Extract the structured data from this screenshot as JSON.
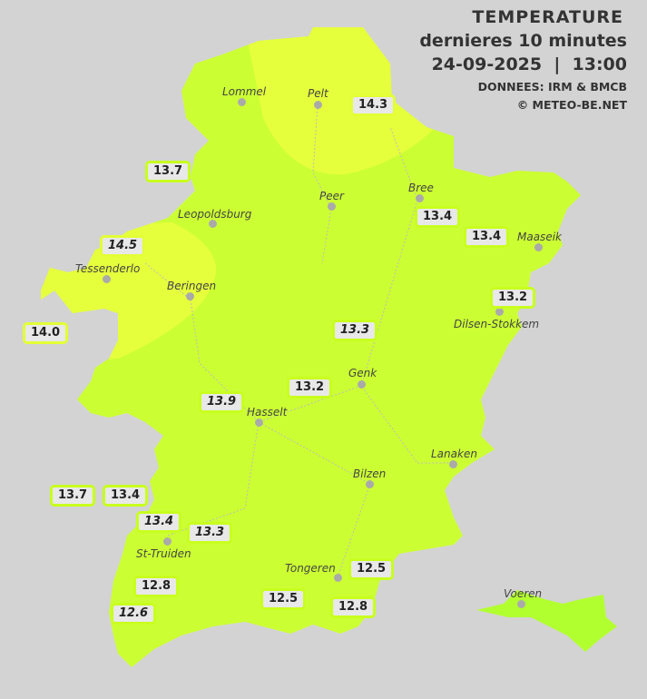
{
  "header": {
    "title": "TEMPERATURE",
    "subtitle": "dernieres 10 minutes",
    "datetime": "24-09-2025  |  13:00",
    "source": "DONNEES: IRM & BMCB",
    "copyright": "© METEO-BE.NET"
  },
  "colors": {
    "background": "#d3d3d3",
    "temp_13": "#ccff33",
    "temp_14": "#e6ff3c",
    "temp_12": "#b2ff30",
    "label_border": "#c8ff1e"
  },
  "cities": [
    {
      "name": "Lommel"
    },
    {
      "name": "Pelt"
    },
    {
      "name": "Peer"
    },
    {
      "name": "Bree"
    },
    {
      "name": "Leopoldsburg"
    },
    {
      "name": "Maaseik"
    },
    {
      "name": "Tessenderlo"
    },
    {
      "name": "Beringen"
    },
    {
      "name": "Dilsen-Stokkem"
    },
    {
      "name": "Genk"
    },
    {
      "name": "Hasselt"
    },
    {
      "name": "Lanaken"
    },
    {
      "name": "Bilzen"
    },
    {
      "name": "St-Truiden"
    },
    {
      "name": "Tongeren"
    },
    {
      "name": "Voeren"
    }
  ],
  "stations": [
    {
      "value": "14.3"
    },
    {
      "value": "13.7"
    },
    {
      "value": "13.4"
    },
    {
      "value": "13.4"
    },
    {
      "value": "14.5"
    },
    {
      "value": "13.2"
    },
    {
      "value": "14.0"
    },
    {
      "value": "13.3"
    },
    {
      "value": "13.2"
    },
    {
      "value": "13.9"
    },
    {
      "value": "13.7"
    },
    {
      "value": "13.4"
    },
    {
      "value": "13.4"
    },
    {
      "value": "13.3"
    },
    {
      "value": "12.5"
    },
    {
      "value": "12.8"
    },
    {
      "value": "12.6"
    },
    {
      "value": "12.5"
    },
    {
      "value": "12.8"
    }
  ]
}
